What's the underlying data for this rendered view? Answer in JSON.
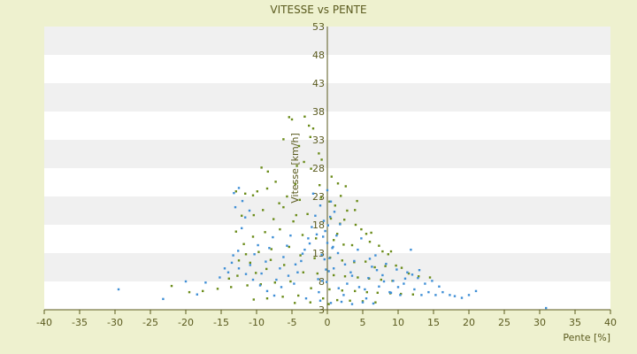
{
  "chart_data": {
    "type": "scatter",
    "title": "VITESSE vs PENTE",
    "xlabel": "Pente [%]",
    "ylabel": "Vitesse [km/h]",
    "xlim": [
      -40,
      40
    ],
    "ylim": [
      3,
      53
    ],
    "x_ticks": [
      -40,
      -35,
      -30,
      -25,
      -20,
      -15,
      -10,
      -5,
      0,
      5,
      10,
      15,
      20,
      25,
      30,
      35,
      40
    ],
    "y_ticks": [
      3,
      8,
      13,
      18,
      23,
      28,
      33,
      38,
      43,
      48,
      53
    ],
    "x_tick_labels": [
      "-40",
      "-35",
      "-30",
      "-25",
      "-20",
      "-15",
      "-10",
      "-5",
      "0",
      "5",
      "10",
      "15",
      "20",
      "25",
      "30",
      "35",
      "40"
    ],
    "y_tick_labels": [
      "3",
      "8",
      "13",
      "18",
      "23",
      "28",
      "33",
      "38",
      "43",
      "48",
      "53"
    ],
    "grid": "horizontal alternating bands",
    "legend": "none",
    "colors": {
      "background": "#eef1cf",
      "band_light": "#ffffff",
      "band_dark": "#f0f0f0",
      "axis": "#5a5a1e",
      "series_a": "#6b8c1a",
      "series_b": "#3f8fd6"
    },
    "series": [
      {
        "color": "#6b8c1a",
        "points": [
          [
            -5.4,
            37.0
          ],
          [
            -5.0,
            36.6
          ],
          [
            -3.2,
            37.1
          ],
          [
            -2.6,
            35.5
          ],
          [
            -2.0,
            35.0
          ],
          [
            -6.2,
            33.1
          ],
          [
            -2.4,
            33.5
          ],
          [
            -4.0,
            31.9
          ],
          [
            -1.2,
            30.6
          ],
          [
            -0.8,
            29.5
          ],
          [
            -3.3,
            29.1
          ],
          [
            -4.3,
            28.4
          ],
          [
            -9.3,
            28.1
          ],
          [
            -8.4,
            27.4
          ],
          [
            -2.3,
            27.9
          ],
          [
            0.6,
            26.5
          ],
          [
            1.5,
            25.3
          ],
          [
            2.6,
            24.8
          ],
          [
            -4.5,
            25.2
          ],
          [
            -8.5,
            24.4
          ],
          [
            -9.9,
            23.9
          ],
          [
            -10.5,
            23.2
          ],
          [
            -12.9,
            23.9
          ],
          [
            -11.6,
            23.5
          ],
          [
            -5.7,
            23.0
          ],
          [
            -0.9,
            22.8
          ],
          [
            0.3,
            22.1
          ],
          [
            1.1,
            21.4
          ],
          [
            2.8,
            20.5
          ],
          [
            3.9,
            20.6
          ],
          [
            -6.8,
            21.8
          ],
          [
            -9.1,
            20.6
          ],
          [
            -10.4,
            19.7
          ],
          [
            -12.1,
            19.6
          ],
          [
            -7.6,
            19.0
          ],
          [
            -4.4,
            19.7
          ],
          [
            -2.8,
            19.9
          ],
          [
            0.5,
            19.1
          ],
          [
            1.8,
            18.2
          ],
          [
            2.4,
            18.9
          ],
          [
            4.0,
            18.0
          ],
          [
            4.8,
            17.2
          ],
          [
            5.5,
            16.4
          ],
          [
            6.2,
            16.6
          ],
          [
            -6.7,
            17.2
          ],
          [
            -8.8,
            16.7
          ],
          [
            -10.5,
            15.9
          ],
          [
            -3.5,
            16.2
          ],
          [
            -1.6,
            15.6
          ],
          [
            0.9,
            15.3
          ],
          [
            2.3,
            14.5
          ],
          [
            3.5,
            14.4
          ],
          [
            6.0,
            15.0
          ],
          [
            7.3,
            14.3
          ],
          [
            7.8,
            13.3
          ],
          [
            8.6,
            12.8
          ],
          [
            9.0,
            13.3
          ],
          [
            -5.4,
            14.1
          ],
          [
            -7.9,
            13.7
          ],
          [
            -9.7,
            13.2
          ],
          [
            -11.5,
            12.8
          ],
          [
            -12.5,
            11.7
          ],
          [
            -3.8,
            12.6
          ],
          [
            -1.8,
            12.1
          ],
          [
            0.4,
            12.2
          ],
          [
            2.1,
            11.7
          ],
          [
            3.8,
            11.4
          ],
          [
            5.4,
            11.5
          ],
          [
            6.7,
            10.5
          ],
          [
            8.2,
            10.7
          ],
          [
            9.7,
            10.8
          ],
          [
            10.5,
            10.4
          ],
          [
            11.5,
            9.4
          ],
          [
            12.9,
            8.9
          ],
          [
            14.5,
            8.7
          ],
          [
            -6.1,
            10.9
          ],
          [
            -8.6,
            10.2
          ],
          [
            -10.1,
            9.5
          ],
          [
            -12.7,
            9.0
          ],
          [
            -13.9,
            8.5
          ],
          [
            -3.4,
            9.6
          ],
          [
            -1.4,
            9.4
          ],
          [
            0.9,
            9.1
          ],
          [
            2.5,
            8.9
          ],
          [
            4.3,
            8.7
          ],
          [
            5.9,
            8.5
          ],
          [
            7.6,
            8.3
          ],
          [
            9.2,
            8.1
          ],
          [
            -5.2,
            8.0
          ],
          [
            -7.4,
            7.8
          ],
          [
            -9.4,
            7.5
          ],
          [
            -11.3,
            7.3
          ],
          [
            -13.6,
            7.0
          ],
          [
            -15.5,
            6.7
          ],
          [
            -17.6,
            6.3
          ],
          [
            -19.5,
            6.1
          ],
          [
            -22.0,
            7.2
          ],
          [
            -2.3,
            6.8
          ],
          [
            0.3,
            6.6
          ],
          [
            2.1,
            6.4
          ],
          [
            3.9,
            6.3
          ],
          [
            5.6,
            6.1
          ],
          [
            7.1,
            6.0
          ],
          [
            8.9,
            5.9
          ],
          [
            10.4,
            5.8
          ],
          [
            12.1,
            5.7
          ],
          [
            -4.1,
            5.5
          ],
          [
            -6.3,
            5.3
          ],
          [
            -8.5,
            5.0
          ],
          [
            -10.4,
            4.8
          ],
          [
            -0.6,
            5.0
          ],
          [
            1.4,
            4.7
          ],
          [
            3.2,
            4.6
          ],
          [
            5.0,
            4.5
          ],
          [
            6.8,
            4.3
          ],
          [
            -2.4,
            4.3
          ],
          [
            -4.6,
            4.2
          ],
          [
            0.2,
            4.0
          ],
          [
            -6.2,
            21.1
          ],
          [
            -7.3,
            25.6
          ],
          [
            -3.9,
            22.4
          ],
          [
            -1.1,
            25.0
          ],
          [
            1.9,
            23.1
          ],
          [
            4.2,
            22.2
          ],
          [
            -8.0,
            11.8
          ],
          [
            -10.9,
            11.3
          ],
          [
            -11.8,
            14.6
          ],
          [
            -12.9,
            16.8
          ],
          [
            -4.8,
            18.6
          ],
          [
            1.4,
            16.4
          ]
        ]
      },
      {
        "color": "#3f8fd6",
        "points": [
          [
            -29.5,
            6.6
          ],
          [
            -23.2,
            4.9
          ],
          [
            -20.0,
            8.0
          ],
          [
            -18.4,
            5.7
          ],
          [
            -17.2,
            7.8
          ],
          [
            -15.2,
            8.7
          ],
          [
            -14.0,
            9.6
          ],
          [
            -13.3,
            12.6
          ],
          [
            -12.6,
            13.4
          ],
          [
            -12.1,
            17.4
          ],
          [
            -11.6,
            19.3
          ],
          [
            -10.9,
            10.9
          ],
          [
            -10.3,
            12.8
          ],
          [
            -9.8,
            14.4
          ],
          [
            -9.3,
            9.4
          ],
          [
            -8.7,
            11.5
          ],
          [
            -8.2,
            13.9
          ],
          [
            -7.7,
            15.8
          ],
          [
            -7.2,
            8.3
          ],
          [
            -6.7,
            10.3
          ],
          [
            -6.2,
            12.3
          ],
          [
            -5.7,
            14.3
          ],
          [
            -5.2,
            16.1
          ],
          [
            -4.7,
            7.6
          ],
          [
            -4.2,
            9.6
          ],
          [
            -3.7,
            11.6
          ],
          [
            -3.2,
            13.6
          ],
          [
            -2.7,
            15.6
          ],
          [
            -2.2,
            17.6
          ],
          [
            -1.7,
            19.6
          ],
          [
            -1.2,
            6.1
          ],
          [
            -0.7,
            8.1
          ],
          [
            -0.2,
            10.1
          ],
          [
            0.3,
            12.1
          ],
          [
            0.8,
            14.1
          ],
          [
            1.3,
            16.1
          ],
          [
            1.8,
            18.1
          ],
          [
            2.3,
            5.6
          ],
          [
            2.8,
            7.6
          ],
          [
            3.3,
            9.6
          ],
          [
            3.8,
            11.6
          ],
          [
            4.3,
            13.6
          ],
          [
            4.8,
            15.6
          ],
          [
            5.3,
            6.6
          ],
          [
            5.8,
            8.6
          ],
          [
            6.3,
            10.6
          ],
          [
            6.8,
            12.6
          ],
          [
            7.3,
            7.1
          ],
          [
            7.8,
            9.1
          ],
          [
            8.3,
            11.1
          ],
          [
            8.8,
            6.1
          ],
          [
            9.3,
            8.1
          ],
          [
            9.8,
            10.1
          ],
          [
            10.3,
            5.6
          ],
          [
            10.8,
            7.6
          ],
          [
            11.3,
            9.6
          ],
          [
            11.8,
            13.6
          ],
          [
            12.3,
            6.6
          ],
          [
            12.8,
            8.6
          ],
          [
            13.3,
            5.6
          ],
          [
            13.8,
            7.6
          ],
          [
            14.3,
            6.1
          ],
          [
            14.8,
            8.1
          ],
          [
            15.3,
            5.6
          ],
          [
            15.8,
            7.1
          ],
          [
            16.3,
            6.1
          ],
          [
            17.3,
            5.6
          ],
          [
            18.0,
            5.4
          ],
          [
            19.0,
            5.1
          ],
          [
            20.0,
            5.6
          ],
          [
            21.0,
            6.3
          ],
          [
            30.9,
            3.3
          ],
          [
            -3.0,
            5.0
          ],
          [
            -1.0,
            4.6
          ],
          [
            0.5,
            4.2
          ],
          [
            2.0,
            4.4
          ],
          [
            3.5,
            4.0
          ],
          [
            5.0,
            4.3
          ],
          [
            6.5,
            4.1
          ],
          [
            -2.0,
            23.5
          ],
          [
            -1.0,
            21.4
          ],
          [
            0.0,
            24.1
          ],
          [
            0.5,
            22.1
          ],
          [
            1.0,
            20.3
          ],
          [
            -0.5,
            18.7
          ],
          [
            -1.5,
            16.3
          ],
          [
            -2.5,
            14.7
          ],
          [
            -3.5,
            12.9
          ],
          [
            -4.5,
            11.0
          ],
          [
            -5.5,
            9.0
          ],
          [
            -6.5,
            7.0
          ],
          [
            -7.5,
            5.5
          ],
          [
            -8.5,
            6.3
          ],
          [
            -9.5,
            7.3
          ],
          [
            -10.5,
            8.3
          ],
          [
            -11.5,
            9.3
          ],
          [
            -12.5,
            10.3
          ],
          [
            -13.5,
            11.3
          ],
          [
            -14.5,
            10.3
          ],
          [
            1.5,
            13.0
          ],
          [
            2.5,
            11.0
          ],
          [
            3.5,
            9.0
          ],
          [
            4.5,
            7.0
          ],
          [
            5.5,
            5.0
          ],
          [
            6.0,
            12.0
          ],
          [
            7.0,
            10.0
          ],
          [
            8.0,
            8.0
          ],
          [
            9.0,
            6.0
          ],
          [
            10.0,
            7.0
          ],
          [
            11.0,
            8.5
          ],
          [
            12.0,
            9.2
          ],
          [
            13.0,
            10.0
          ],
          [
            -12.0,
            22.2
          ],
          [
            -13.0,
            21.1
          ],
          [
            -11.0,
            20.5
          ],
          [
            -12.5,
            24.5
          ],
          [
            -13.2,
            23.6
          ],
          [
            0.0,
            14.8
          ],
          [
            -0.3,
            16.9
          ],
          [
            0.4,
            19.4
          ],
          [
            -0.8,
            12.7
          ],
          [
            0.9,
            10.3
          ],
          [
            -1.3,
            8.4
          ],
          [
            1.6,
            6.8
          ],
          [
            -0.1,
            7.9
          ],
          [
            0.2,
            9.8
          ],
          [
            -0.4,
            11.9
          ],
          [
            0.7,
            13.9
          ],
          [
            -0.6,
            15.9
          ],
          [
            0.1,
            17.9
          ]
        ]
      }
    ]
  }
}
